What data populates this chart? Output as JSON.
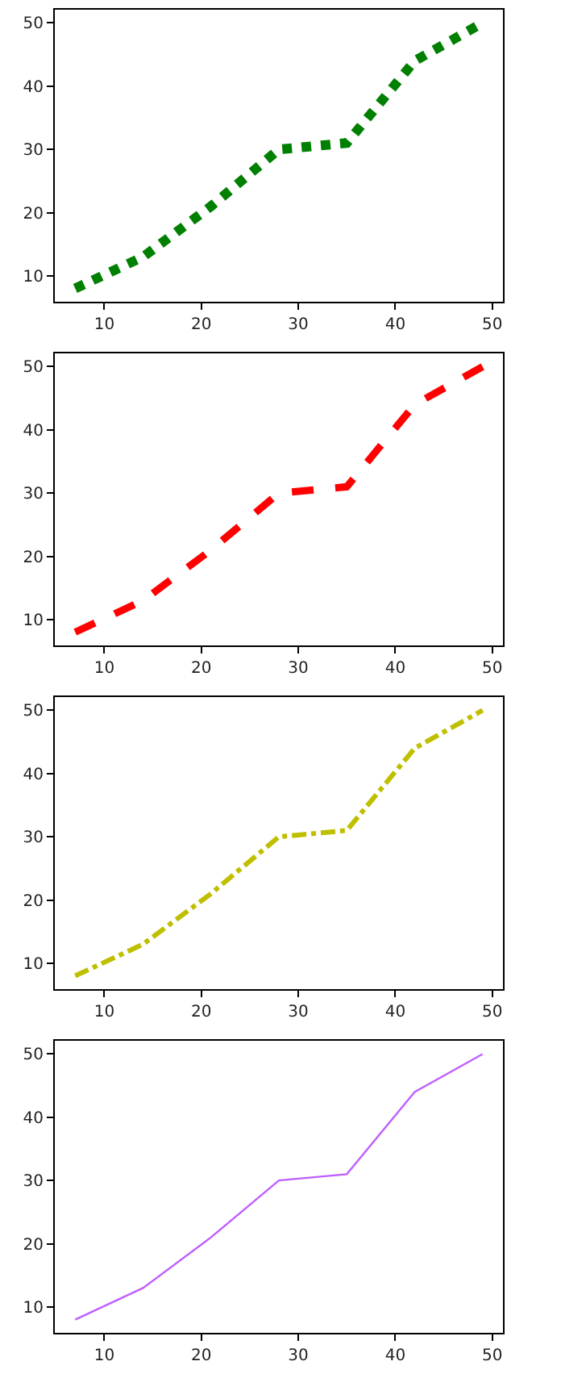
{
  "chart_data": [
    {
      "type": "line",
      "x": [
        7,
        14,
        21,
        28,
        35,
        42,
        49
      ],
      "series": [
        {
          "color": "#008000",
          "values": [
            8,
            13,
            21,
            30,
            31,
            44,
            50
          ],
          "line_style": "dotted"
        }
      ],
      "xlim": [
        4.9,
        51.1
      ],
      "ylim": [
        5.9,
        52.1
      ],
      "xticks": [
        10,
        20,
        30,
        40,
        50
      ],
      "yticks": [
        10,
        20,
        30,
        40,
        50
      ],
      "grid": false
    },
    {
      "type": "line",
      "x": [
        7,
        14,
        21,
        28,
        35,
        42,
        49
      ],
      "series": [
        {
          "color": "#ff0000",
          "values": [
            8,
            13,
            21,
            30,
            31,
            44,
            50
          ],
          "line_style": "dashed"
        }
      ],
      "xlim": [
        4.9,
        51.1
      ],
      "ylim": [
        5.9,
        52.1
      ],
      "xticks": [
        10,
        20,
        30,
        40,
        50
      ],
      "yticks": [
        10,
        20,
        30,
        40,
        50
      ],
      "grid": false
    },
    {
      "type": "line",
      "x": [
        7,
        14,
        21,
        28,
        35,
        42,
        49
      ],
      "series": [
        {
          "color": "#bfbf00",
          "values": [
            8,
            13,
            21,
            30,
            31,
            44,
            50
          ],
          "line_style": "dashdot"
        }
      ],
      "xlim": [
        4.9,
        51.1
      ],
      "ylim": [
        5.9,
        52.1
      ],
      "xticks": [
        10,
        20,
        30,
        40,
        50
      ],
      "yticks": [
        10,
        20,
        30,
        40,
        50
      ],
      "grid": false
    },
    {
      "type": "line",
      "x": [
        7,
        14,
        21,
        28,
        35,
        42,
        49
      ],
      "series": [
        {
          "color": "#bf5fff",
          "values": [
            8,
            13,
            21,
            30,
            31,
            44,
            50
          ],
          "line_style": "solid"
        }
      ],
      "xlim": [
        4.9,
        51.1
      ],
      "ylim": [
        5.9,
        52.1
      ],
      "xticks": [
        10,
        20,
        30,
        40,
        50
      ],
      "yticks": [
        10,
        20,
        30,
        40,
        50
      ],
      "grid": false
    }
  ]
}
